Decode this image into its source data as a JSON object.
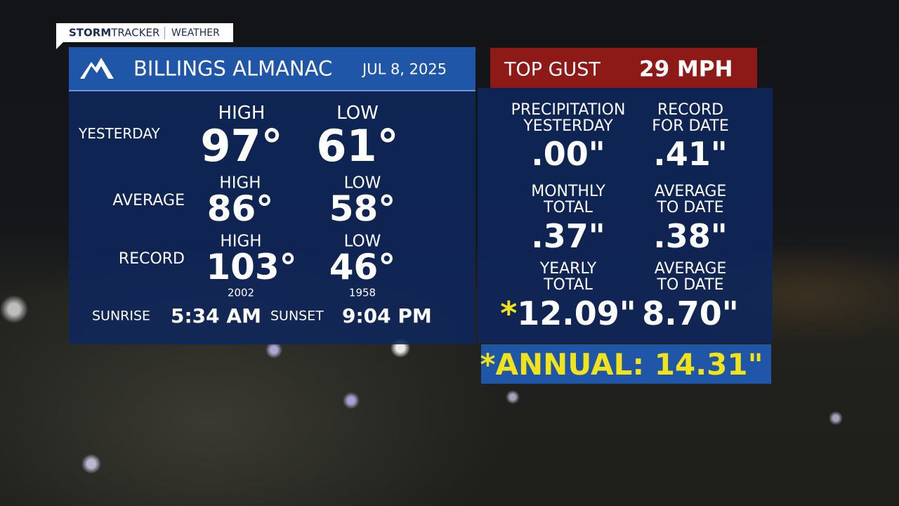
{
  "brand": {
    "bold": "STORM",
    "light": "TRACKER",
    "section": "WEATHER"
  },
  "header": {
    "title": "BILLINGS ALMANAC",
    "date": "JUL 8, 2025"
  },
  "temperatures": {
    "yesterday": {
      "label": "YESTERDAY",
      "high_label": "HIGH",
      "high": "97°",
      "low_label": "LOW",
      "low": "61°"
    },
    "average": {
      "label": "AVERAGE",
      "high_label": "HIGH",
      "high": "86°",
      "low_label": "LOW",
      "low": "58°"
    },
    "record": {
      "label": "RECORD",
      "high_label": "HIGH",
      "high": "103°",
      "high_year": "2002",
      "low_label": "LOW",
      "low": "46°",
      "low_year": "1958"
    }
  },
  "sun": {
    "sunrise_label": "SUNRISE",
    "sunrise": "5:34 AM",
    "sunset_label": "SUNSET",
    "sunset": "9:04 PM"
  },
  "gust": {
    "label": "TOP GUST",
    "value": "29 MPH"
  },
  "precipitation": [
    {
      "label": [
        "PRECIPITATION",
        "YESTERDAY"
      ],
      "value": ".00\""
    },
    {
      "label": [
        "RECORD",
        "FOR DATE"
      ],
      "value": ".41\""
    },
    {
      "label": [
        "MONTHLY",
        "TOTAL"
      ],
      "value": ".37\""
    },
    {
      "label": [
        "AVERAGE",
        "TO DATE"
      ],
      "value": ".38\""
    },
    {
      "label": [
        "YEARLY",
        "TOTAL"
      ],
      "marker": "*",
      "value": "12.09\""
    },
    {
      "label": [
        "AVERAGE",
        "TO DATE"
      ],
      "value": "8.70\""
    }
  ],
  "annual": "*ANNUAL: 14.31\""
}
